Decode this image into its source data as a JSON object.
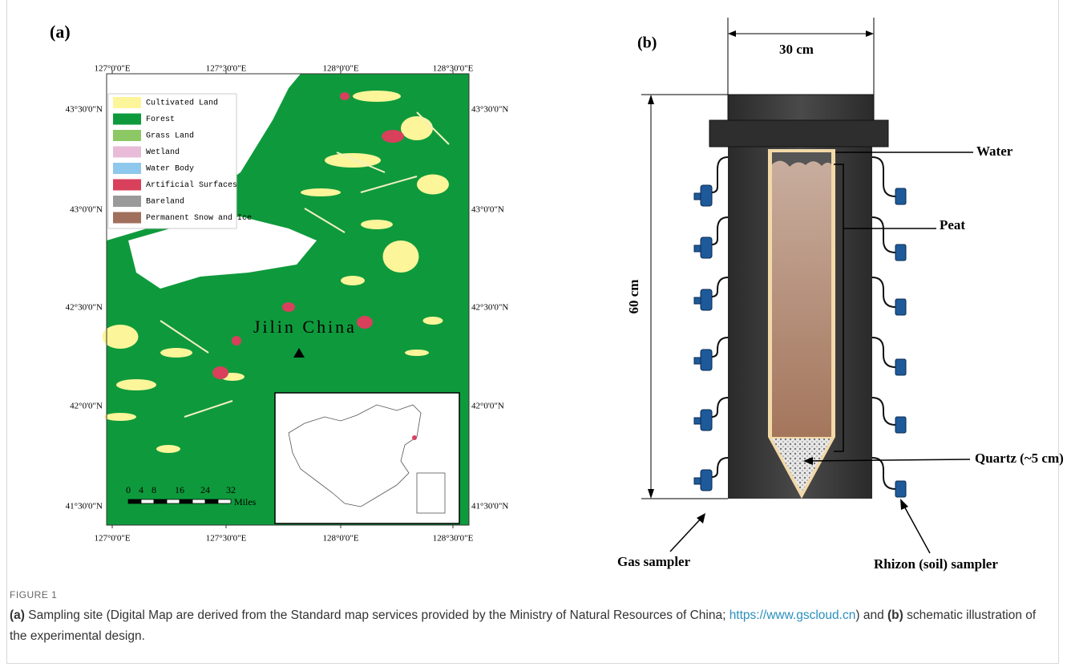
{
  "panel_a": {
    "label": "(a)",
    "lon_ticks": [
      "127°0'0\"E",
      "127°30'0\"E",
      "128°0'0\"E",
      "128°30'0\"E"
    ],
    "lat_ticks": [
      "43°30'0\"N",
      "43°0'0\"N",
      "42°30'0\"N",
      "42°0'0\"N",
      "41°30'0\"N"
    ],
    "legend": [
      {
        "name": "Cultivated Land",
        "color": "#fdf59a"
      },
      {
        "name": "Forest",
        "color": "#0e9a3c"
      },
      {
        "name": "Grass Land",
        "color": "#8cc864"
      },
      {
        "name": "Wetland",
        "color": "#e8bcd8"
      },
      {
        "name": "Water Body",
        "color": "#8ec8ec"
      },
      {
        "name": "Artificial Surfaces",
        "color": "#d8405c"
      },
      {
        "name": "Bareland",
        "color": "#9a9a9a"
      },
      {
        "name": "Permanent Snow and Ice",
        "color": "#a0705c"
      }
    ],
    "place_label": "Jilin China",
    "scale_ticks": [
      "0",
      "4",
      "8",
      "16",
      "24",
      "32"
    ],
    "scale_unit": "Miles"
  },
  "panel_b": {
    "label": "(b)",
    "width_label": "30 cm",
    "height_label": "60 cm",
    "water": "Water",
    "peat": "Peat",
    "quartz": "Quartz (~5 cm)",
    "gas_sampler": "Gas sampler",
    "rhizon_sampler": "Rhizon (soil) sampler"
  },
  "caption": {
    "figure": "FIGURE 1",
    "a": "(a)",
    "a_text": " Sampling site (Digital Map are derived from the Standard map services provided by the Ministry of Natural Resources of China; ",
    "link": "https://www.gscloud.cn",
    "mid": ") and ",
    "b": "(b)",
    "b_text": " schematic illustration of the experimental design."
  }
}
